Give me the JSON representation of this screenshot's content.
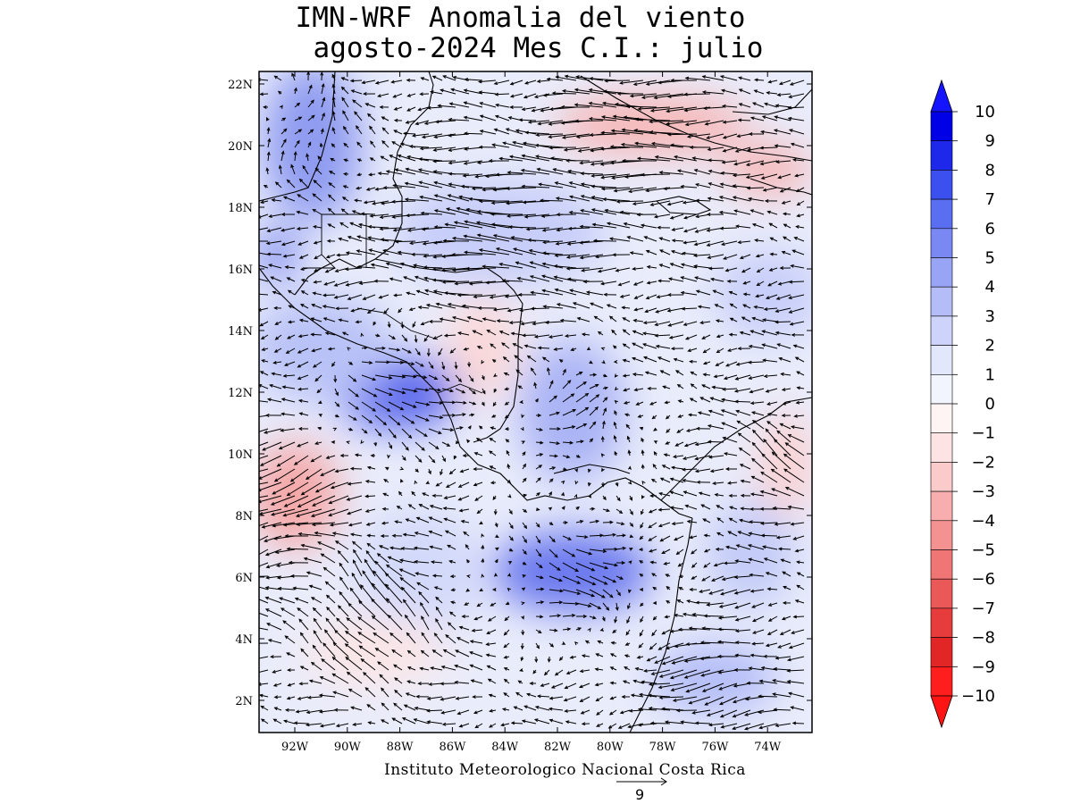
{
  "title": {
    "line1": "IMN-WRF Anomalia del viento",
    "line2": "agosto-2024 Mes C.I.: julio"
  },
  "credit": "Instituto Meteorologico Nacional Costa Rica",
  "reference_vector": {
    "value": "9"
  },
  "colorbar": {
    "labels": [
      "10",
      "9",
      "8",
      "7",
      "6",
      "5",
      "4",
      "3",
      "2",
      "1",
      "0",
      "−1",
      "−2",
      "−3",
      "−4",
      "−5",
      "−6",
      "−7",
      "−8",
      "−9",
      "−10"
    ],
    "colors": [
      "#0000e6",
      "#1e28eb",
      "#3c50f0",
      "#5a6ef2",
      "#7a88f4",
      "#98a4f6",
      "#b4bdf8",
      "#cdd3fa",
      "#e3e7fc",
      "#f2f4fe",
      "#fff4f4",
      "#fde3e3",
      "#fbcaca",
      "#f8aeae",
      "#f49292",
      "#f07575",
      "#eb5858",
      "#e63c3c",
      "#e22626",
      "#ff1e1e"
    ],
    "top_arrow_color": "#1414ff",
    "bottom_arrow_color": "#ff1414"
  },
  "map": {
    "lat_labels": [
      "22N",
      "20N",
      "18N",
      "16N",
      "14N",
      "12N",
      "10N",
      "8N",
      "6N",
      "4N",
      "2N"
    ],
    "lon_labels": [
      "92W",
      "90W",
      "88W",
      "86W",
      "84W",
      "82W",
      "80W",
      "78W",
      "76W",
      "74W"
    ]
  }
}
